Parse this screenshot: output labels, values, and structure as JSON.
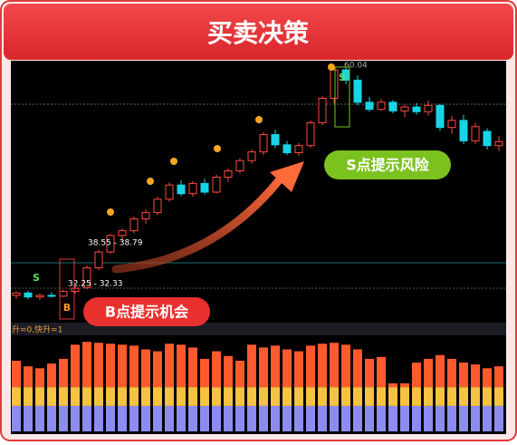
{
  "header": {
    "title": "买卖决策"
  },
  "callouts": [
    "S点提示风险",
    "B点提示机会"
  ],
  "markers": [
    "B",
    "S",
    "S"
  ],
  "chart_data": [
    {
      "type": "candlestick",
      "open": [
        31.0,
        31.3,
        30.8,
        31.0,
        30.9,
        31.5,
        32.0,
        34.5,
        36.5,
        38.6,
        39.2,
        40.7,
        41.5,
        43.2,
        45.0,
        43.9,
        45.2,
        44.1,
        46.0,
        46.8,
        48.1,
        49.2,
        51.4,
        50.1,
        49.1,
        50.0,
        52.9,
        56.0,
        59.6,
        58.3,
        55.5,
        54.6,
        55.5,
        54.4,
        54.9,
        54.3,
        55.1,
        52.3,
        53.2,
        50.6,
        51.8,
        50.0
      ],
      "high": [
        31.5,
        31.6,
        31.2,
        31.4,
        31.7,
        32.2,
        34.8,
        36.8,
        38.8,
        39.5,
        41.0,
        41.9,
        43.5,
        45.3,
        45.6,
        45.5,
        45.8,
        46.3,
        47.1,
        48.4,
        49.5,
        51.7,
        52.0,
        50.6,
        50.3,
        53.2,
        56.3,
        60.04,
        60.0,
        58.9,
        56.2,
        55.9,
        55.8,
        55.2,
        55.4,
        55.7,
        55.3,
        53.8,
        53.9,
        52.9,
        52.2,
        51.2
      ],
      "low": [
        30.6,
        30.5,
        30.4,
        30.7,
        30.8,
        31.2,
        31.8,
        34.2,
        36.3,
        37.9,
        38.9,
        40.1,
        41.2,
        42.9,
        43.6,
        43.5,
        43.8,
        43.9,
        45.4,
        46.5,
        47.7,
        48.8,
        49.7,
        48.8,
        48.7,
        49.7,
        52.6,
        55.4,
        57.8,
        55.1,
        54.3,
        54.4,
        54.1,
        53.6,
        53.9,
        53.8,
        51.9,
        51.5,
        50.2,
        50.2,
        49.5,
        49.3
      ],
      "close": [
        31.3,
        30.8,
        31.0,
        30.9,
        31.5,
        31.9,
        34.5,
        36.5,
        38.6,
        39.2,
        40.7,
        41.5,
        43.2,
        45.0,
        43.9,
        45.2,
        44.1,
        46.0,
        46.8,
        48.1,
        49.2,
        51.4,
        50.1,
        49.1,
        50.0,
        52.9,
        56.0,
        59.6,
        58.3,
        55.5,
        54.6,
        55.5,
        54.4,
        54.9,
        54.3,
        55.1,
        52.3,
        53.2,
        50.6,
        52.4,
        50.0,
        50.5
      ],
      "up_color": "#ff4a3d",
      "down_color": "#19d4e6",
      "ylim": [
        28,
        61
      ],
      "annotations": [
        "38.55 - 38.79",
        "32.25 - 32.33",
        "60.04"
      ]
    },
    {
      "type": "bar",
      "stacked": true,
      "title": "升=0,快升=1",
      "ylim": [
        0,
        100
      ],
      "series": [
        {
          "color": "#8c8cf0",
          "values": [
            27,
            27,
            27,
            27,
            27,
            27,
            27,
            27,
            27,
            27,
            27,
            27,
            27,
            27,
            27,
            27,
            27,
            27,
            27,
            27,
            27,
            27,
            27,
            27,
            27,
            27,
            27,
            27,
            27,
            27,
            27,
            27,
            27,
            27,
            27,
            27,
            27,
            27,
            27,
            27,
            27,
            27
          ]
        },
        {
          "color": "#f5c242",
          "values": [
            20,
            20,
            20,
            20,
            20,
            20,
            20,
            20,
            20,
            20,
            20,
            20,
            20,
            20,
            20,
            20,
            20,
            20,
            20,
            20,
            20,
            20,
            20,
            20,
            20,
            20,
            20,
            20,
            20,
            20,
            20,
            20,
            20,
            20,
            20,
            20,
            20,
            20,
            20,
            20,
            20,
            20
          ]
        },
        {
          "color": "#ff5a2e",
          "values": [
            28,
            22,
            20,
            25,
            30,
            45,
            48,
            47,
            46,
            45,
            44,
            40,
            38,
            46,
            45,
            42,
            30,
            38,
            33,
            28,
            45,
            42,
            44,
            40,
            38,
            44,
            46,
            47,
            45,
            40,
            30,
            32,
            4,
            4,
            26,
            30,
            34,
            30,
            26,
            24,
            20,
            22
          ]
        }
      ]
    }
  ]
}
